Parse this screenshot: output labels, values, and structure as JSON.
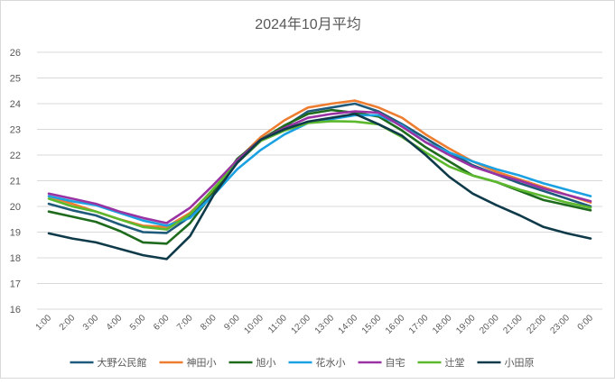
{
  "chart_data": {
    "type": "line",
    "title": "2024年10月平均",
    "xlabel": "",
    "ylabel": "",
    "ylim": [
      16,
      26
    ],
    "yticks": [
      16,
      17,
      18,
      19,
      20,
      21,
      22,
      23,
      24,
      25,
      26
    ],
    "grid": true,
    "legend_position": "bottom",
    "categories": [
      "1:00",
      "2:00",
      "3:00",
      "4:00",
      "5:00",
      "6:00",
      "7:00",
      "8:00",
      "9:00",
      "10:00",
      "11:00",
      "12:00",
      "13:00",
      "14:00",
      "15:00",
      "16:00",
      "17:00",
      "18:00",
      "19:00",
      "20:00",
      "21:00",
      "22:00",
      "23:00",
      "0:00"
    ],
    "series": [
      {
        "name": "大野公民館",
        "color": "#1f5a7a",
        "values": [
          20.1,
          19.85,
          19.65,
          19.3,
          19.0,
          18.97,
          19.6,
          20.6,
          21.7,
          22.55,
          23.1,
          23.7,
          23.85,
          24.0,
          23.7,
          23.2,
          22.65,
          22.1,
          21.6,
          21.25,
          20.9,
          20.6,
          20.3,
          20.0
        ]
      },
      {
        "name": "神田小",
        "color": "#ed7d31",
        "values": [
          20.4,
          20.1,
          19.8,
          19.5,
          19.25,
          19.2,
          19.75,
          20.65,
          21.8,
          22.7,
          23.35,
          23.85,
          24.0,
          24.12,
          23.85,
          23.45,
          22.8,
          22.25,
          21.75,
          21.35,
          21.05,
          20.75,
          20.45,
          20.15
        ]
      },
      {
        "name": "旭小",
        "color": "#1e6b1e",
        "values": [
          19.8,
          19.6,
          19.4,
          19.05,
          18.6,
          18.55,
          19.35,
          20.55,
          21.85,
          22.6,
          23.15,
          23.6,
          23.75,
          23.65,
          23.5,
          22.95,
          22.3,
          21.75,
          21.2,
          20.95,
          20.6,
          20.25,
          20.05,
          19.85
        ]
      },
      {
        "name": "花水小",
        "color": "#1ba1e2",
        "values": [
          20.4,
          20.2,
          20.05,
          19.75,
          19.45,
          19.25,
          19.55,
          20.45,
          21.45,
          22.2,
          22.8,
          23.25,
          23.4,
          23.55,
          23.55,
          23.15,
          22.5,
          22.1,
          21.75,
          21.45,
          21.2,
          20.9,
          20.65,
          20.4
        ]
      },
      {
        "name": "自宅",
        "color": "#9933a3",
        "values": [
          20.5,
          20.3,
          20.1,
          19.8,
          19.55,
          19.35,
          19.95,
          20.85,
          21.8,
          22.6,
          23.05,
          23.45,
          23.6,
          23.7,
          23.65,
          23.1,
          22.5,
          22.0,
          21.55,
          21.25,
          21.0,
          20.7,
          20.45,
          20.2
        ]
      },
      {
        "name": "辻堂",
        "color": "#5cb82d",
        "values": [
          20.3,
          20.0,
          19.8,
          19.5,
          19.2,
          19.1,
          19.7,
          20.7,
          21.7,
          22.55,
          22.95,
          23.25,
          23.32,
          23.3,
          23.2,
          22.7,
          22.1,
          21.55,
          21.2,
          20.95,
          20.65,
          20.4,
          20.15,
          19.95
        ]
      },
      {
        "name": "小田原",
        "color": "#0f3a4a",
        "values": [
          18.95,
          18.75,
          18.6,
          18.35,
          18.1,
          17.95,
          18.85,
          20.45,
          21.7,
          22.6,
          23.0,
          23.3,
          23.45,
          23.6,
          23.2,
          22.75,
          22.0,
          21.15,
          20.5,
          20.05,
          19.65,
          19.2,
          18.95,
          18.75
        ]
      }
    ]
  }
}
